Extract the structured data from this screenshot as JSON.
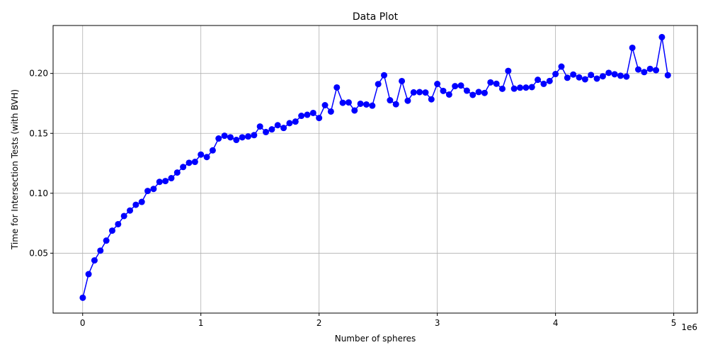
{
  "chart_data": {
    "type": "line",
    "title": "Data Plot",
    "xlabel": "Number of spheres",
    "ylabel": "Time for Intersection Tests (with BVH)",
    "x_offset_label": "1e6",
    "xlim": [
      -250000,
      5200000
    ],
    "ylim": [
      0.0,
      0.24
    ],
    "x_ticks": [
      0,
      1000000,
      2000000,
      3000000,
      4000000,
      5000000
    ],
    "x_tick_labels": [
      "0",
      "1",
      "2",
      "3",
      "4",
      "5"
    ],
    "y_ticks": [
      0.05,
      0.1,
      0.15,
      0.2
    ],
    "y_tick_labels": [
      "0.05",
      "0.10",
      "0.15",
      "0.20"
    ],
    "grid": true,
    "legend": "none",
    "series": [
      {
        "color": "#0000ff",
        "marker": "circle",
        "x": [
          1000,
          50000,
          100000,
          150000,
          200000,
          250000,
          300000,
          350000,
          400000,
          450000,
          500000,
          550000,
          600000,
          650000,
          700000,
          750000,
          800000,
          850000,
          900000,
          950000,
          1000000,
          1050000,
          1100000,
          1150000,
          1200000,
          1250000,
          1300000,
          1350000,
          1400000,
          1450000,
          1500000,
          1550000,
          1600000,
          1650000,
          1700000,
          1750000,
          1800000,
          1850000,
          1900000,
          1950000,
          2000000,
          2050000,
          2100000,
          2150000,
          2200000,
          2250000,
          2300000,
          2350000,
          2400000,
          2450000,
          2500000,
          2550000,
          2600000,
          2650000,
          2700000,
          2750000,
          2800000,
          2850000,
          2900000,
          2950000,
          3000000,
          3050000,
          3100000,
          3150000,
          3200000,
          3250000,
          3300000,
          3350000,
          3400000,
          3450000,
          3500000,
          3550000,
          3600000,
          3650000,
          3700000,
          3750000,
          3800000,
          3850000,
          3900000,
          3950000,
          4000000,
          4050000,
          4100000,
          4150000,
          4200000,
          4250000,
          4300000,
          4350000,
          4400000,
          4450000,
          4500000,
          4550000,
          4600000,
          4650000,
          4700000,
          4750000,
          4800000,
          4850000,
          4900000,
          4950000
        ],
        "y": [
          0.0128,
          0.0325,
          0.044,
          0.0521,
          0.0605,
          0.0688,
          0.0742,
          0.081,
          0.0856,
          0.0904,
          0.0928,
          0.1019,
          0.1036,
          0.1095,
          0.1102,
          0.1126,
          0.1173,
          0.1219,
          0.1254,
          0.1262,
          0.1323,
          0.1302,
          0.1358,
          0.1457,
          0.148,
          0.1467,
          0.1445,
          0.1467,
          0.1474,
          0.1485,
          0.1557,
          0.1511,
          0.1533,
          0.1568,
          0.1545,
          0.1585,
          0.1598,
          0.1646,
          0.1655,
          0.167,
          0.1628,
          0.1735,
          0.1682,
          0.1883,
          0.1755,
          0.1758,
          0.1691,
          0.1747,
          0.1741,
          0.1731,
          0.1911,
          0.1985,
          0.1776,
          0.1743,
          0.1936,
          0.1772,
          0.1842,
          0.1844,
          0.1841,
          0.1784,
          0.1912,
          0.1854,
          0.1824,
          0.1894,
          0.1899,
          0.1856,
          0.1821,
          0.1845,
          0.1837,
          0.1925,
          0.1914,
          0.1872,
          0.2021,
          0.1873,
          0.1881,
          0.1882,
          0.1886,
          0.1947,
          0.1913,
          0.1937,
          0.1995,
          0.2057,
          0.1964,
          0.1991,
          0.1967,
          0.1951,
          0.1987,
          0.1957,
          0.1976,
          0.2005,
          0.1993,
          0.1981,
          0.1974,
          0.2214,
          0.2033,
          0.2011,
          0.2038,
          0.2027,
          0.2303,
          0.1985
        ]
      }
    ]
  }
}
